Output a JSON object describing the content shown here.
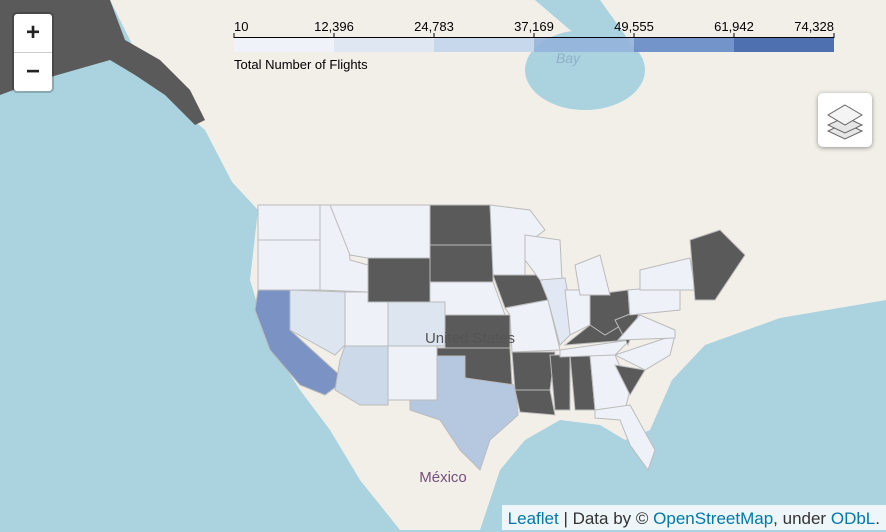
{
  "controls": {
    "zoom_in": "+",
    "zoom_out": "−"
  },
  "legend": {
    "caption": "Total Number of Flights",
    "ticks": [
      10,
      {
        "value": 12396,
        "label": "12,396"
      },
      {
        "value": 24783,
        "label": "24,783"
      },
      {
        "value": 37169,
        "label": "37,169"
      },
      {
        "value": 49555,
        "label": "49,555"
      },
      {
        "value": 61942,
        "label": "61,942"
      },
      {
        "value": 74328,
        "label": "74,328"
      }
    ],
    "colors": [
      "#eef2fa",
      "#dce5f3",
      "#c3d5ec",
      "#93b3dc",
      "#6589c8",
      "#3c62ab"
    ]
  },
  "map_labels": {
    "bay": "Bay",
    "country": "United States",
    "mexico": "México"
  },
  "attribution": {
    "leaflet": "Leaflet",
    "data_by": "| Data by ©",
    "osm": "OpenStreetMap",
    "under": ", under",
    "odbl": "ODbL",
    "end": "."
  }
}
